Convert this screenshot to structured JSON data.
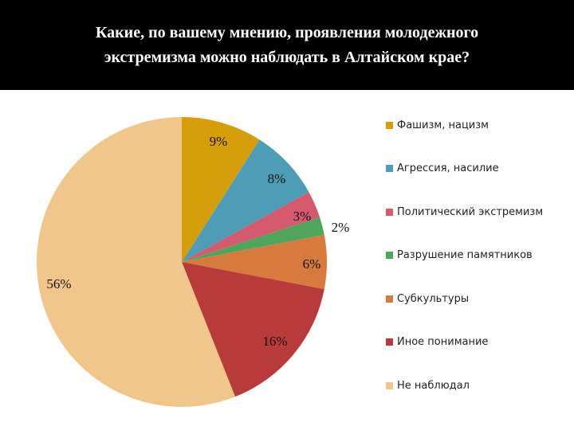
{
  "chart_data": {
    "type": "pie",
    "title": "Какие, по вашему мнению, проявления молодежного экстремизма можно наблюдать в Алтайском крае?",
    "slices": [
      {
        "label": "Фашизм, нацизм",
        "value": 9,
        "display": "9%",
        "color": "#D79E0B"
      },
      {
        "label": "Агрессия, насилие",
        "value": 8,
        "display": "8%",
        "color": "#4E9DB7"
      },
      {
        "label": "Политический экстремизм",
        "value": 3,
        "display": "3%",
        "color": "#D65A6D"
      },
      {
        "label": "Разрушение памятников",
        "value": 2,
        "display": "2%",
        "color": "#4FA55B"
      },
      {
        "label": "Субкультуры",
        "value": 6,
        "display": "6%",
        "color": "#D67A3E"
      },
      {
        "label": "Иное понимание",
        "value": 16,
        "display": "16%",
        "color": "#B83A3A"
      },
      {
        "label": "Не наблюдал",
        "value": 56,
        "display": "56%",
        "color": "#F1C68A"
      }
    ],
    "legend_position": "right"
  }
}
